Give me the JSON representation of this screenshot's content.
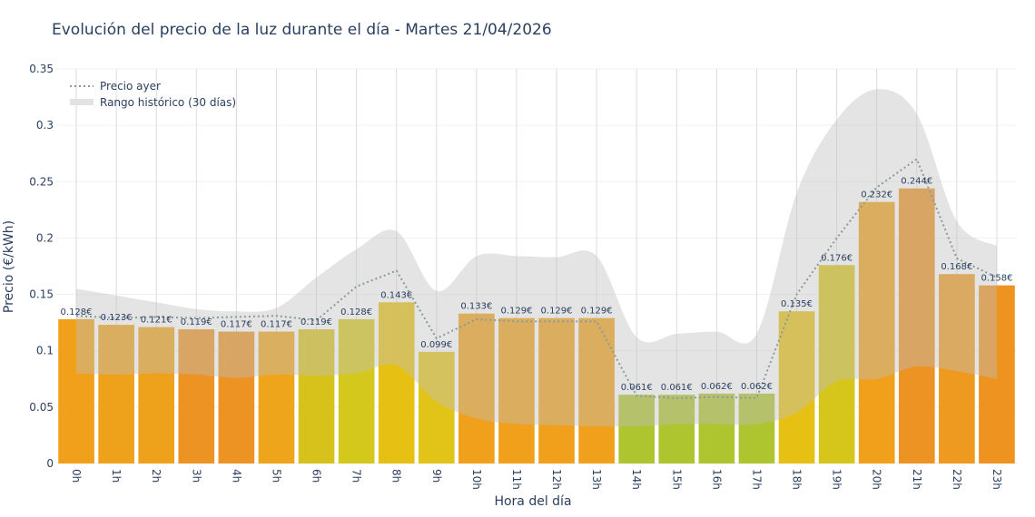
{
  "chart_data": {
    "type": "bar",
    "title": "Evolución del precio de la luz durante el día - Martes 21/04/2026",
    "xlabel": "Hora del día",
    "ylabel": "Precio (€/kWh)",
    "ylim": [
      0,
      0.35
    ],
    "yticks": [
      "0",
      "0.05",
      "0.1",
      "0.15",
      "0.2",
      "0.25",
      "0.3",
      "0.35"
    ],
    "grid": true,
    "legend_position": "top-left",
    "categories": [
      "0h",
      "1h",
      "2h",
      "3h",
      "4h",
      "5h",
      "6h",
      "7h",
      "8h",
      "9h",
      "10h",
      "11h",
      "12h",
      "13h",
      "14h",
      "15h",
      "16h",
      "17h",
      "18h",
      "19h",
      "20h",
      "21h",
      "22h",
      "23h"
    ],
    "values": [
      0.128,
      0.123,
      0.121,
      0.119,
      0.117,
      0.117,
      0.119,
      0.128,
      0.143,
      0.099,
      0.133,
      0.129,
      0.129,
      0.129,
      0.061,
      0.061,
      0.062,
      0.062,
      0.135,
      0.176,
      0.232,
      0.244,
      0.168,
      0.158
    ],
    "labels": [
      "0.128€",
      "0.123€",
      "0.121€",
      "0.119€",
      "0.117€",
      "0.117€",
      "0.119€",
      "0.128€",
      "0.143€",
      "0.099€",
      "0.133€",
      "0.129€",
      "0.129€",
      "0.129€",
      "0.061€",
      "0.061€",
      "0.062€",
      "0.062€",
      "0.135€",
      "0.176€",
      "0.232€",
      "0.244€",
      "0.168€",
      "0.158€"
    ],
    "bar_colors": [
      "#f0a01a",
      "#eea21c",
      "#eea21c",
      "#ec9323",
      "#ec9324",
      "#eea51c",
      "#d7c21c",
      "#d5c81c",
      "#e6c114",
      "#e2c418",
      "#f0a01a",
      "#f0a01a",
      "#f0a01a",
      "#f0a01a",
      "#aec52f",
      "#aec52f",
      "#aec52f",
      "#aec52f",
      "#e6c114",
      "#d6c61c",
      "#f0a01a",
      "#ec9323",
      "#ee9a20",
      "#ee9320"
    ],
    "series": [
      {
        "name": "Precio ayer",
        "style": "dotted",
        "color": "#8a9a9a",
        "values": [
          0.131,
          0.129,
          0.13,
          0.129,
          0.13,
          0.131,
          0.127,
          0.157,
          0.171,
          0.111,
          0.128,
          0.126,
          0.126,
          0.126,
          0.06,
          0.058,
          0.059,
          0.058,
          0.15,
          0.2,
          0.245,
          0.27,
          0.182,
          0.165
        ]
      },
      {
        "name": "Rango histórico (30 días)",
        "style": "band",
        "color": "#cccccc",
        "upper": [
          0.155,
          0.149,
          0.143,
          0.137,
          0.135,
          0.138,
          0.165,
          0.19,
          0.206,
          0.153,
          0.184,
          0.184,
          0.183,
          0.184,
          0.112,
          0.115,
          0.117,
          0.115,
          0.24,
          0.305,
          0.332,
          0.31,
          0.215,
          0.193
        ],
        "lower": [
          0.08,
          0.079,
          0.08,
          0.079,
          0.076,
          0.079,
          0.078,
          0.08,
          0.087,
          0.055,
          0.04,
          0.035,
          0.034,
          0.033,
          0.033,
          0.035,
          0.035,
          0.035,
          0.045,
          0.073,
          0.075,
          0.086,
          0.082,
          0.075
        ]
      }
    ]
  }
}
